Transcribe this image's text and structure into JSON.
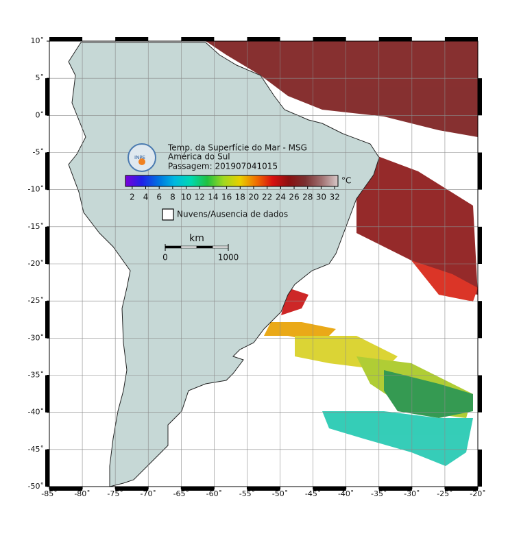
{
  "title": [
    "Temp. da Superfície do Mar - MSG",
    "América do Sul",
    "Passagem: 201907041015"
  ],
  "logo": "INPE",
  "map": {
    "xlim": [
      -85,
      -20
    ],
    "ylim": [
      -50,
      10
    ],
    "grid": true,
    "xticks": [
      {
        "value": -85,
        "label": "-85˚"
      },
      {
        "value": -80,
        "label": "-80˚"
      },
      {
        "value": -75,
        "label": "-75˚"
      },
      {
        "value": -70,
        "label": "-70˚"
      },
      {
        "value": -65,
        "label": "-65˚"
      },
      {
        "value": -60,
        "label": "-60˚"
      },
      {
        "value": -55,
        "label": "-55˚"
      },
      {
        "value": -50,
        "label": "-50˚"
      },
      {
        "value": -45,
        "label": "-45˚"
      },
      {
        "value": -40,
        "label": "-40˚"
      },
      {
        "value": -35,
        "label": "-35˚"
      },
      {
        "value": -30,
        "label": "-30˚"
      },
      {
        "value": -25,
        "label": "-25˚"
      },
      {
        "value": -20,
        "label": "-20˚"
      }
    ],
    "yticks": [
      {
        "value": 10,
        "label": "10˚"
      },
      {
        "value": 5,
        "label": "5˚"
      },
      {
        "value": 0,
        "label": "0˚"
      },
      {
        "value": -5,
        "label": "-5˚"
      },
      {
        "value": -10,
        "label": "-10˚"
      },
      {
        "value": -15,
        "label": "-15˚"
      },
      {
        "value": -20,
        "label": "-20˚"
      },
      {
        "value": -25,
        "label": "-25˚"
      },
      {
        "value": -30,
        "label": "-30˚"
      },
      {
        "value": -35,
        "label": "-35˚"
      },
      {
        "value": -40,
        "label": "-40˚"
      },
      {
        "value": -45,
        "label": "-45˚"
      },
      {
        "value": -50,
        "label": "-50˚"
      }
    ]
  },
  "colorbar": {
    "lim": [
      1,
      32.5
    ],
    "ticks": [
      2,
      4,
      6,
      8,
      10,
      12,
      14,
      16,
      18,
      20,
      22,
      24,
      26,
      28,
      30,
      32
    ],
    "unit": "°C",
    "colors": [
      "#7a00d8",
      "#2020e8",
      "#0070e0",
      "#00b8e0",
      "#00d8b0",
      "#20c040",
      "#a0d820",
      "#e8d000",
      "#f07000",
      "#d81010",
      "#8a1010",
      "#7a3030",
      "#a07070",
      "#d8c8c8"
    ]
  },
  "legend": "Nuvens/Ausencia de dados",
  "scale_bar": {
    "label": "km",
    "lim": [
      0,
      1000
    ],
    "ticks": [
      0,
      1000
    ]
  }
}
